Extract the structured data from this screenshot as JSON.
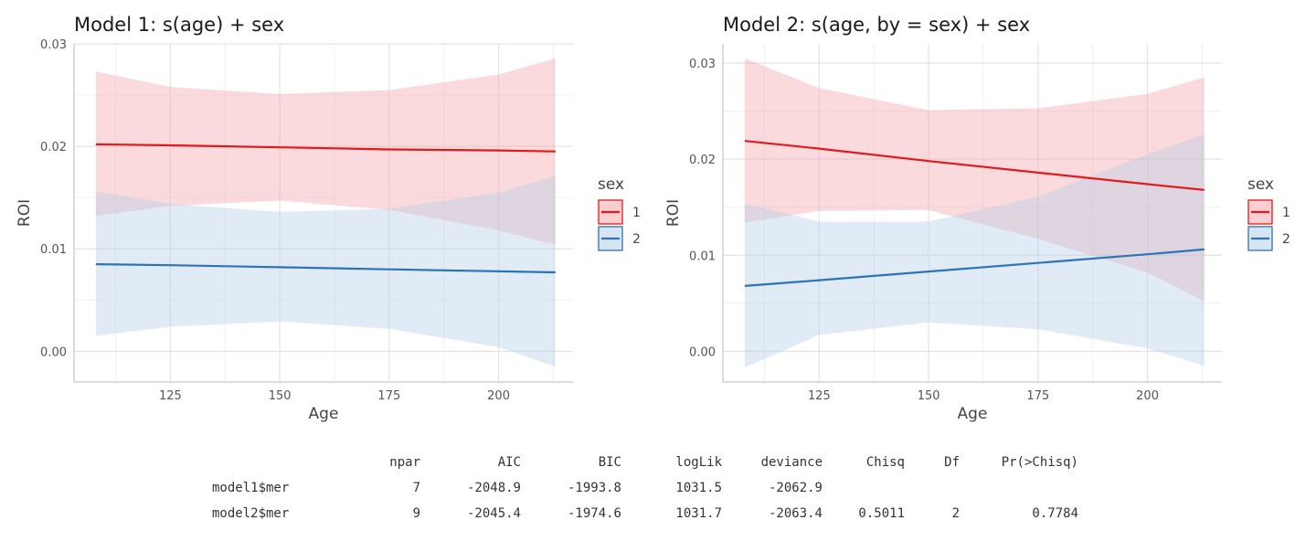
{
  "chart_data": [
    {
      "type": "line",
      "title": "Model 1: s(age) + sex",
      "xlabel": "Age",
      "ylabel": "ROI",
      "xlim": [
        103,
        217
      ],
      "ylim": [
        -0.003,
        0.03
      ],
      "x_ticks": [
        "125",
        "150",
        "175",
        "200"
      ],
      "x_tick_values": [
        125,
        150,
        175,
        200
      ],
      "y_ticks": [
        "0.00",
        "0.01",
        "0.02",
        "0.03"
      ],
      "y_tick_values": [
        0.0,
        0.01,
        0.02,
        0.03
      ],
      "grid": true,
      "legend": {
        "title": "sex",
        "position": "right"
      },
      "series": [
        {
          "name": "1",
          "color": "#e31a1c",
          "band_color": "#f4a8ac",
          "x": [
            108,
            125,
            150,
            175,
            200,
            213
          ],
          "values": [
            0.0202,
            0.0201,
            0.0199,
            0.0197,
            0.0196,
            0.0195
          ],
          "lower": [
            0.0132,
            0.0142,
            0.0147,
            0.0138,
            0.0118,
            0.0104
          ],
          "upper": [
            0.0273,
            0.0258,
            0.0251,
            0.0255,
            0.027,
            0.0286
          ]
        },
        {
          "name": "2",
          "color": "#2c74b5",
          "band_color": "#b7d0e8",
          "x": [
            108,
            125,
            150,
            175,
            200,
            213
          ],
          "values": [
            0.0085,
            0.0084,
            0.0082,
            0.008,
            0.0078,
            0.0077
          ],
          "lower": [
            0.0015,
            0.0024,
            0.0029,
            0.0022,
            0.0004,
            -0.0015
          ],
          "upper": [
            0.0156,
            0.0144,
            0.0136,
            0.0139,
            0.0155,
            0.0171
          ]
        }
      ]
    },
    {
      "type": "line",
      "title": "Model 2: s(age, by = sex) + sex",
      "xlabel": "Age",
      "ylabel": "ROI",
      "xlim": [
        103,
        217
      ],
      "ylim": [
        -0.0032,
        0.032
      ],
      "x_ticks": [
        "125",
        "150",
        "175",
        "200"
      ],
      "x_tick_values": [
        125,
        150,
        175,
        200
      ],
      "y_ticks": [
        "0.00",
        "0.01",
        "0.02",
        "0.03"
      ],
      "y_tick_values": [
        0.0,
        0.01,
        0.02,
        0.03
      ],
      "grid": true,
      "legend": {
        "title": "sex",
        "position": "right"
      },
      "series": [
        {
          "name": "1",
          "color": "#e31a1c",
          "band_color": "#f4a8ac",
          "x": [
            108,
            125,
            150,
            175,
            200,
            213
          ],
          "values": [
            0.0219,
            0.0211,
            0.0198,
            0.0186,
            0.0174,
            0.0168
          ],
          "lower": [
            0.0134,
            0.0146,
            0.0147,
            0.0117,
            0.0082,
            0.0052
          ],
          "upper": [
            0.0305,
            0.0274,
            0.0251,
            0.0253,
            0.0268,
            0.0285
          ]
        },
        {
          "name": "2",
          "color": "#2c74b5",
          "band_color": "#b7d0e8",
          "x": [
            108,
            125,
            150,
            175,
            200,
            213
          ],
          "values": [
            0.0068,
            0.0074,
            0.0083,
            0.0092,
            0.0101,
            0.0106
          ],
          "lower": [
            -0.0017,
            0.0017,
            0.003,
            0.0023,
            0.0003,
            -0.0015
          ],
          "upper": [
            0.0154,
            0.0135,
            0.0135,
            0.0161,
            0.0205,
            0.0226
          ]
        }
      ]
    }
  ],
  "anova_table": {
    "headers": [
      "",
      "npar",
      "AIC",
      "BIC",
      "logLik",
      "deviance",
      "Chisq",
      "Df",
      "Pr(>Chisq)"
    ],
    "rows": [
      [
        "model1$mer",
        "7",
        "-2048.9",
        "-1993.8",
        "1031.5",
        "-2062.9",
        "",
        "",
        ""
      ],
      [
        "model2$mer",
        "9",
        "-2045.4",
        "-1974.6",
        "1031.7",
        "-2063.4",
        "0.5011",
        "2",
        "0.7784"
      ]
    ]
  }
}
